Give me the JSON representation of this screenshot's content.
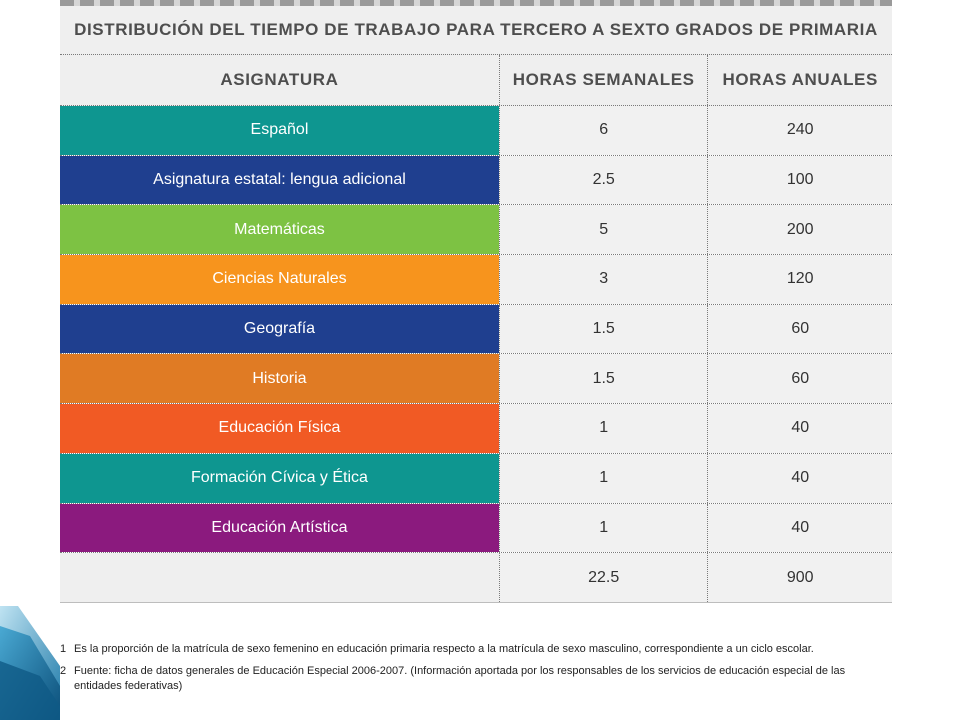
{
  "table": {
    "title": "DISTRIBUCIÓN DEL TIEMPO DE TRABAJO PARA TERCERO A SEXTO GRADOS DE PRIMARIA",
    "headers": [
      "ASIGNATURA",
      "HORAS SEMANALES",
      "HORAS ANUALES"
    ],
    "rows": [
      {
        "subject": "Español",
        "weekly": "6",
        "annual": "240",
        "color": "#0e9690"
      },
      {
        "subject": "Asignatura estatal: lengua adicional",
        "weekly": "2.5",
        "annual": "100",
        "color": "#1f3f8f"
      },
      {
        "subject": "Matemáticas",
        "weekly": "5",
        "annual": "200",
        "color": "#7dc243"
      },
      {
        "subject": "Ciencias Naturales",
        "weekly": "3",
        "annual": "120",
        "color": "#f7941d"
      },
      {
        "subject": "Geografía",
        "weekly": "1.5",
        "annual": "60",
        "color": "#1f3f8f"
      },
      {
        "subject": "Historia",
        "weekly": "1.5",
        "annual": "60",
        "color": "#e07b24"
      },
      {
        "subject": "Educación Física",
        "weekly": "1",
        "annual": "40",
        "color": "#f15a24"
      },
      {
        "subject": "Formación Cívica y Ética",
        "weekly": "1",
        "annual": "40",
        "color": "#0e9690"
      },
      {
        "subject": "Educación Artística",
        "weekly": "1",
        "annual": "40",
        "color": "#8b1a7e"
      }
    ],
    "total": {
      "weekly": "22.5",
      "annual": "900"
    }
  },
  "footnotes": [
    {
      "num": "1",
      "text": "Es la proporción de la matrícula de sexo femenino en educación primaria respecto a la matrícula de sexo masculino, correspondiente a un ciclo escolar."
    },
    {
      "num": "2",
      "text": "Fuente: ficha de datos generales de Educación Especial 2006-2007. (Información aportada por los responsables de los servicios de educación especial de las entidades federativas)"
    }
  ]
}
